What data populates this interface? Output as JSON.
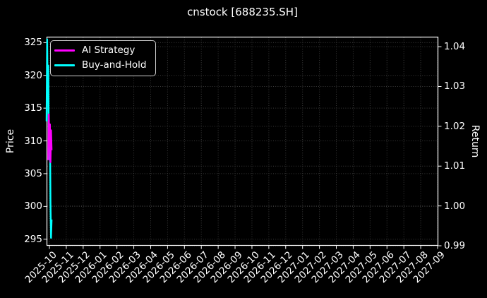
{
  "chart_data": {
    "type": "line",
    "title": "cnstock [688235.SH]",
    "background": "#000000",
    "text_color": "#ffffff",
    "grid": {
      "on": true,
      "color": "#3a3a3a",
      "style": "dotted"
    },
    "left_axis": {
      "label": "Price",
      "tick_labels": [
        "295",
        "300",
        "305",
        "310",
        "315",
        "320",
        "325"
      ],
      "tick_values": [
        295,
        300,
        305,
        310,
        315,
        320,
        325
      ],
      "lim": [
        294.0,
        325.9
      ]
    },
    "right_axis": {
      "label": "Return",
      "tick_labels": [
        "0.99",
        "1.00",
        "1.01",
        "1.02",
        "1.03",
        "1.04"
      ],
      "tick_values": [
        0.99,
        1.0,
        1.01,
        1.02,
        1.03,
        1.04
      ],
      "lim": [
        0.99,
        1.0425
      ]
    },
    "x_axis": {
      "tick_labels": [
        "2025-10",
        "2025-11",
        "2025-12",
        "2026-01",
        "2026-02",
        "2026-03",
        "2026-04",
        "2026-05",
        "2026-06",
        "2026-07",
        "2026-08",
        "2026-09",
        "2026-10",
        "2026-11",
        "2026-12",
        "2027-01",
        "2027-02",
        "2027-03",
        "2027-04",
        "2027-05",
        "2027-06",
        "2027-07",
        "2027-08",
        "2027-09"
      ],
      "tick_rotation_deg": 45
    },
    "legend": {
      "position": "upper left",
      "entries": [
        {
          "label": "AI Strategy",
          "color": "#ff00ff"
        },
        {
          "label": "Buy-and-Hold",
          "color": "#00ffff"
        }
      ]
    },
    "series": [
      {
        "name": "Buy-and-Hold",
        "color": "#00ffff",
        "axis": "left",
        "linewidth": 2.5,
        "days_from_xmin": [
          0,
          1,
          2,
          3,
          4,
          5,
          6,
          7,
          8,
          9
        ],
        "values": [
          313.0,
          325.5,
          316.0,
          321.5,
          309.0,
          307.2,
          312.0,
          300.5,
          295.2,
          298.0
        ]
      },
      {
        "name": "AI Strategy",
        "color": "#ff00ff",
        "axis": "right",
        "linewidth": 2.5,
        "days_from_xmin": [
          3,
          4,
          5,
          6,
          7,
          8,
          9
        ],
        "values": [
          1.0115,
          1.023,
          1.015,
          1.0205,
          1.011,
          1.019,
          1.014
        ]
      }
    ]
  }
}
